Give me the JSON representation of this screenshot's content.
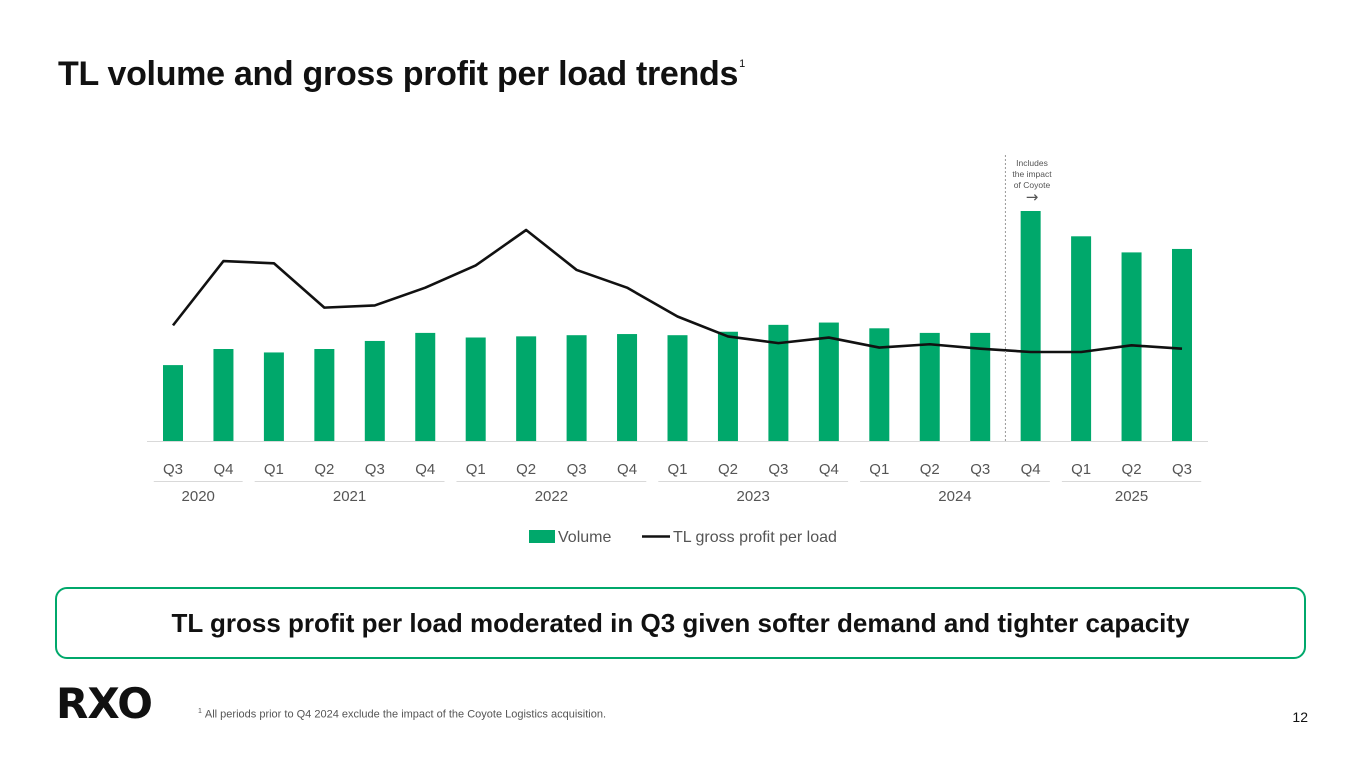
{
  "slide": {
    "title": "TL volume and gross profit per load trends",
    "title_sup": "1",
    "callout": "TL gross profit per load moderated in Q3 given softer demand and tighter capacity",
    "logo": "RXO",
    "footnote_sup": "1",
    "footnote": "All periods prior to Q4 2024 exclude the impact of the Coyote Logistics acquisition.",
    "page_number": "12",
    "accent_color": "#00A86B"
  },
  "chart_data": {
    "type": "bar",
    "categories": [
      "Q3",
      "Q4",
      "Q1",
      "Q2",
      "Q3",
      "Q4",
      "Q1",
      "Q2",
      "Q3",
      "Q4",
      "Q1",
      "Q2",
      "Q3",
      "Q4",
      "Q1",
      "Q2",
      "Q3",
      "Q4",
      "Q1",
      "Q2",
      "Q3"
    ],
    "year_groups": [
      {
        "label": "2020",
        "start": 0,
        "end": 1
      },
      {
        "label": "2021",
        "start": 2,
        "end": 5
      },
      {
        "label": "2022",
        "start": 6,
        "end": 9
      },
      {
        "label": "2023",
        "start": 10,
        "end": 13
      },
      {
        "label": "2024",
        "start": 14,
        "end": 17
      },
      {
        "label": "2025",
        "start": 18,
        "end": 20
      }
    ],
    "series": [
      {
        "name": "Volume",
        "kind": "bar",
        "color": "#00A86B",
        "values": [
          33,
          40,
          38.5,
          40,
          43.5,
          47,
          45,
          45.5,
          46,
          46.5,
          46,
          47.5,
          50.5,
          51.5,
          49,
          47,
          47,
          100,
          89,
          82,
          83.5
        ]
      },
      {
        "name": "TL gross profit per load",
        "kind": "line",
        "color": "#111111",
        "values": [
          48,
          77,
          76,
          56,
          57,
          65,
          75,
          91,
          73,
          65,
          52,
          43,
          40,
          42.5,
          38,
          39.5,
          37.5,
          36,
          36,
          39,
          37.5
        ]
      }
    ],
    "annotation": {
      "text_lines": [
        "Includes",
        "the impact",
        "of Coyote"
      ],
      "arrow": "→",
      "divider_before_index": 17
    },
    "legend": {
      "position": "bottom-center",
      "entries": [
        "Volume",
        "TL gross profit per load"
      ]
    },
    "ylim": [
      0,
      100
    ],
    "grid": false
  }
}
